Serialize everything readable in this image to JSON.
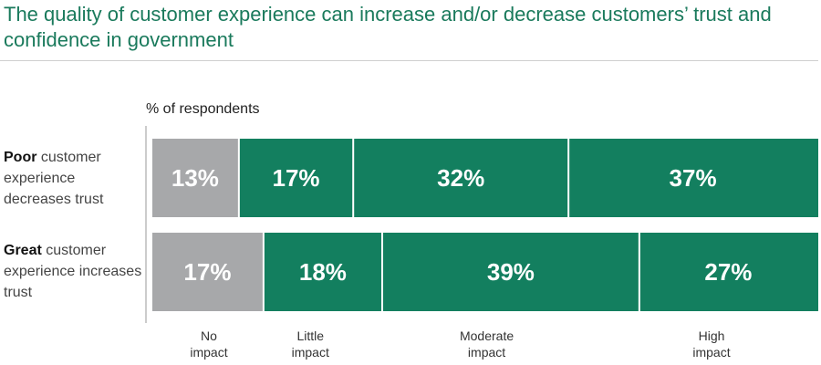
{
  "title": "The quality of customer experience can increase and/or decrease customers’ trust and confidence in government",
  "colors": {
    "title": "#1a7a5c",
    "no_impact": "#a7a8aa",
    "impact": "#137f5f",
    "axis": "#999999"
  },
  "chart_data": {
    "type": "bar",
    "orientation": "horizontal",
    "stacked": true,
    "ylabel": "% of respondents",
    "categories": [
      {
        "bold": "Poor",
        "rest": " customer experience decreases trust"
      },
      {
        "bold": "Great",
        "rest": " customer experience increases trust"
      }
    ],
    "series": [
      {
        "name": "No impact",
        "line1": "No",
        "line2": "impact",
        "color": "#a7a8aa",
        "values": [
          13,
          17
        ]
      },
      {
        "name": "Little impact",
        "line1": "Little",
        "line2": "impact",
        "color": "#137f5f",
        "values": [
          17,
          18
        ]
      },
      {
        "name": "Moderate impact",
        "line1": "Moderate",
        "line2": "impact",
        "color": "#137f5f",
        "values": [
          32,
          39
        ]
      },
      {
        "name": "High impact",
        "line1": "High",
        "line2": "impact",
        "color": "#137f5f",
        "values": [
          37,
          27
        ]
      }
    ],
    "value_suffix": "%",
    "legend": "bottom"
  }
}
